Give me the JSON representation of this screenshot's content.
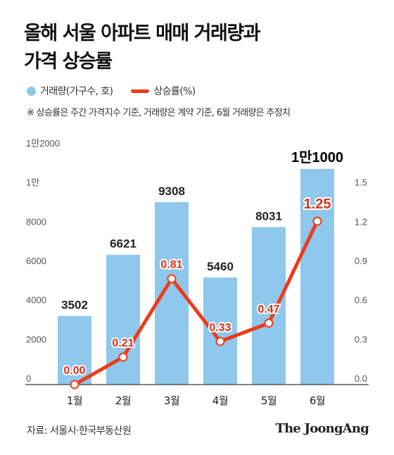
{
  "title": {
    "line1": "올해 서울 아파트 매매 거래량과",
    "line2": "가격 상승률"
  },
  "legend": {
    "bar_label": "거래량(가구수, 호)",
    "line_label": "상승률(%)"
  },
  "note": "※ 상승률은 주간 가격지수 기준, 거래량은 계약 기준, 6월 거래량은 추정치",
  "source": "자료: 서울시·한국부동산원",
  "brand": "The JoongAng",
  "colors": {
    "bar": "#8ec8ec",
    "line": "#ee3a1a",
    "rate_label": "#d9311a"
  },
  "chart_data": {
    "type": "bar",
    "categories": [
      "1월",
      "2월",
      "3월",
      "4월",
      "5월",
      "6월"
    ],
    "series": [
      {
        "name": "거래량(가구수, 호)",
        "type": "bar",
        "axis": "left",
        "values": [
          3502,
          6621,
          9308,
          5460,
          8031,
          11000
        ],
        "labels": [
          "3502",
          "6621",
          "9308",
          "5460",
          "8031",
          "1만1000"
        ]
      },
      {
        "name": "상승률(%)",
        "type": "line",
        "axis": "right",
        "values": [
          0.0,
          0.21,
          0.81,
          0.33,
          0.47,
          1.25
        ],
        "labels": [
          "0.00",
          "0.21",
          "0.81",
          "0.33",
          "0.47",
          "1.25"
        ]
      }
    ],
    "y_left": {
      "ylim": [
        0,
        12000
      ],
      "ticks": [
        0,
        2000,
        4000,
        6000,
        8000,
        10000,
        12000
      ],
      "tick_labels": [
        "0",
        "2000",
        "4000",
        "6000",
        "8000",
        "1만",
        "1만2000"
      ]
    },
    "y_right": {
      "ylim": [
        0,
        1.8
      ],
      "ticks": [
        0,
        0.3,
        0.6,
        0.9,
        1.2,
        1.5
      ],
      "tick_labels": [
        "0.0",
        "0.3",
        "0.6",
        "0.9",
        "1.2",
        "1.5"
      ]
    },
    "grid": false
  }
}
